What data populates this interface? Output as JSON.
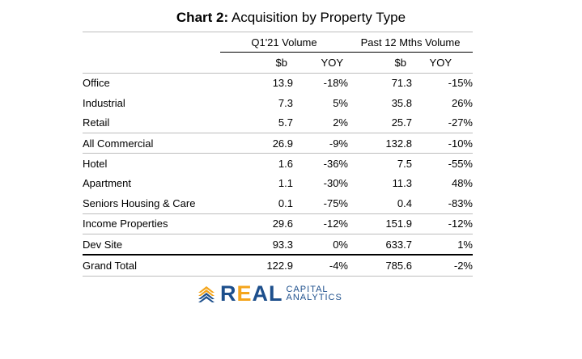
{
  "chart_data": {
    "type": "table",
    "title_prefix": "Chart 2:",
    "title": "Acquisition by Property Type",
    "column_groups": [
      "Q1'21 Volume",
      "Past 12 Mths Volume"
    ],
    "columns": [
      "$b",
      "YOY",
      "$b",
      "YOY"
    ],
    "rows": [
      {
        "label": "Office",
        "q1_vol": "13.9",
        "q1_yoy": "-18%",
        "ttm_vol": "71.3",
        "ttm_yoy": "-15%"
      },
      {
        "label": "Industrial",
        "q1_vol": "7.3",
        "q1_yoy": "5%",
        "ttm_vol": "35.8",
        "ttm_yoy": "26%"
      },
      {
        "label": "Retail",
        "q1_vol": "5.7",
        "q1_yoy": "2%",
        "ttm_vol": "25.7",
        "ttm_yoy": "-27%"
      },
      {
        "label": "All Commercial",
        "q1_vol": "26.9",
        "q1_yoy": "-9%",
        "ttm_vol": "132.8",
        "ttm_yoy": "-10%"
      },
      {
        "label": "Hotel",
        "q1_vol": "1.6",
        "q1_yoy": "-36%",
        "ttm_vol": "7.5",
        "ttm_yoy": "-55%"
      },
      {
        "label": "Apartment",
        "q1_vol": "1.1",
        "q1_yoy": "-30%",
        "ttm_vol": "11.3",
        "ttm_yoy": "48%"
      },
      {
        "label": "Seniors Housing & Care",
        "q1_vol": "0.1",
        "q1_yoy": "-75%",
        "ttm_vol": "0.4",
        "ttm_yoy": "-83%"
      },
      {
        "label": "Income Properties",
        "q1_vol": "29.6",
        "q1_yoy": "-12%",
        "ttm_vol": "151.9",
        "ttm_yoy": "-12%"
      },
      {
        "label": "Dev Site",
        "q1_vol": "93.3",
        "q1_yoy": "0%",
        "ttm_vol": "633.7",
        "ttm_yoy": "1%"
      },
      {
        "label": "Grand Total",
        "q1_vol": "122.9",
        "q1_yoy": "-4%",
        "ttm_vol": "785.6",
        "ttm_yoy": "-2%"
      }
    ]
  },
  "logo": {
    "word": "REAL",
    "sub_line1": "CAPITAL",
    "sub_line2": "ANALYTICS",
    "colors": {
      "brand_blue": "#1d4f8c",
      "brand_gold": "#f4a51c"
    }
  }
}
